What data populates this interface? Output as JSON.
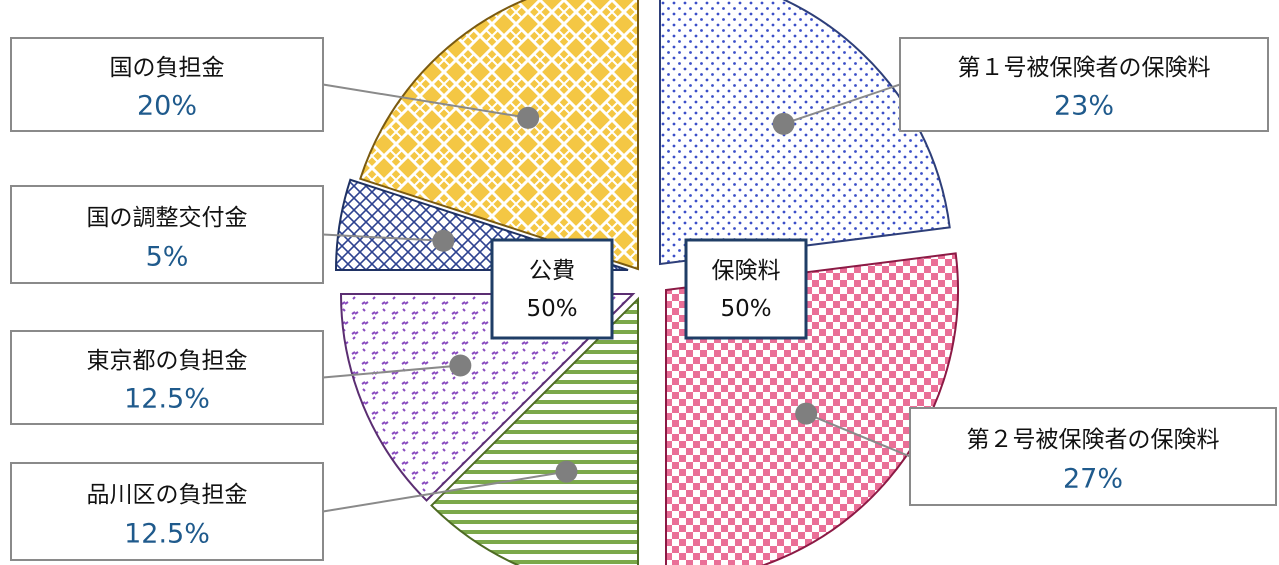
{
  "chart_data": {
    "type": "pie",
    "style": "exploded-halves",
    "slices": [
      {
        "id": "s1",
        "label": "第１号被保険者の保険料",
        "value": 23,
        "value_label": "23%",
        "group": "premium",
        "color": "#2e3f7a",
        "pattern": "dots"
      },
      {
        "id": "s2",
        "label": "第２号被保険者の保険料",
        "value": 27,
        "value_label": "27%",
        "group": "premium",
        "color": "#8c1a45",
        "pattern": "checker"
      },
      {
        "id": "s3",
        "label": "品川区の負担金",
        "value": 12.5,
        "value_label": "12.5%",
        "group": "public",
        "color": "#4e6b24",
        "pattern": "stripes"
      },
      {
        "id": "s4",
        "label": "東京都の負担金",
        "value": 12.5,
        "value_label": "12.5%",
        "group": "public",
        "color": "#5b2e72",
        "pattern": "confetti"
      },
      {
        "id": "s5",
        "label": "国の調整交付金",
        "value": 5,
        "value_label": "5%",
        "group": "public",
        "color": "#1f3264",
        "pattern": "crosshatch"
      },
      {
        "id": "s6",
        "label": "国の負担金",
        "value": 20,
        "value_label": "20%",
        "group": "public",
        "color": "#7a5a10",
        "pattern": "lattice"
      }
    ],
    "groups": [
      {
        "id": "public",
        "label": "公費",
        "value_label": "50%"
      },
      {
        "id": "premium",
        "label": "保険料",
        "value_label": "50%"
      }
    ]
  }
}
